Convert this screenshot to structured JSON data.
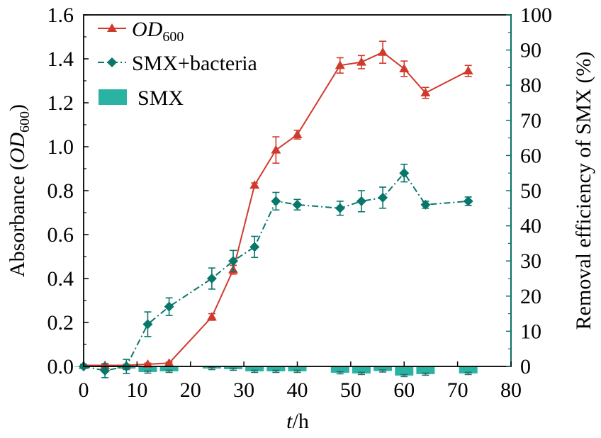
{
  "chart_data": {
    "type": "line",
    "title": "",
    "xlabel": {
      "italic": "t",
      "rest": "/h"
    },
    "ylabel_left": {
      "pre": "Absorbance (",
      "italic": "OD",
      "sub": "600",
      "post": ")"
    },
    "ylabel_right": "Removal efficiency of SMX (%)",
    "xlim": [
      0,
      80
    ],
    "ylim_left": [
      0,
      1.6
    ],
    "ylim_right": [
      0,
      100
    ],
    "x_ticks": [
      "0",
      "10",
      "20",
      "30",
      "40",
      "50",
      "60",
      "70",
      "80"
    ],
    "y_left_ticks": [
      "0.0",
      "0.2",
      "0.4",
      "0.6",
      "0.8",
      "1.0",
      "1.2",
      "1.4",
      "1.6"
    ],
    "y_right_ticks": [
      "0",
      "10",
      "20",
      "30",
      "40",
      "50",
      "60",
      "70",
      "80",
      "90",
      "100"
    ],
    "grid": false,
    "legend_position": "top-left",
    "colors": {
      "od": "#d03a2c",
      "smx_bacteria": "#08776b",
      "smx": "#2ab3a3",
      "right_axis": "#08776b"
    },
    "series": [
      {
        "name": {
          "italic": "OD",
          "sub": "600"
        },
        "kind": "line-triangle",
        "axis": "left",
        "x": [
          0,
          4,
          8,
          12,
          16,
          24,
          28,
          32,
          36,
          40,
          48,
          52,
          56,
          60,
          64,
          72
        ],
        "y": [
          0.005,
          0.005,
          0.005,
          0.01,
          0.015,
          0.225,
          0.44,
          0.825,
          0.985,
          1.055,
          1.37,
          1.385,
          1.43,
          1.355,
          1.245,
          1.345
        ],
        "err": [
          0.005,
          0.005,
          0.005,
          0.005,
          0.005,
          0.015,
          0.02,
          0.01,
          0.06,
          0.02,
          0.035,
          0.03,
          0.05,
          0.035,
          0.025,
          0.025
        ]
      },
      {
        "name": "SMX+bacteria",
        "kind": "dashdot-diamond",
        "axis": "right",
        "x": [
          0,
          4,
          8,
          12,
          16,
          24,
          28,
          32,
          36,
          40,
          48,
          52,
          56,
          60,
          64,
          72
        ],
        "y": [
          0,
          -1.2,
          0,
          12,
          17,
          25,
          30,
          34,
          47,
          46,
          45,
          47,
          48,
          55,
          46,
          47
        ],
        "err": [
          0.5,
          2,
          2,
          3.5,
          2.5,
          3,
          3,
          3,
          2.5,
          1.5,
          2,
          3,
          3,
          2.5,
          1,
          1.2
        ]
      },
      {
        "name": "SMX",
        "kind": "bar",
        "axis": "right",
        "x": [
          0,
          4,
          8,
          12,
          16,
          24,
          28,
          32,
          36,
          40,
          48,
          52,
          56,
          60,
          64,
          72
        ],
        "y": [
          0,
          -0.2,
          -0.6,
          -1.6,
          -1.4,
          -0.6,
          -0.8,
          -1.4,
          -1.4,
          -1.4,
          -1.8,
          -2.0,
          -1.3,
          -2.6,
          -2.2,
          -2.0
        ],
        "err": [
          0,
          0.2,
          0.3,
          0.3,
          0.3,
          0.3,
          0.3,
          0.3,
          0.3,
          0.3,
          0.3,
          0.3,
          0.3,
          0.3,
          0.3,
          0.3
        ]
      }
    ]
  }
}
